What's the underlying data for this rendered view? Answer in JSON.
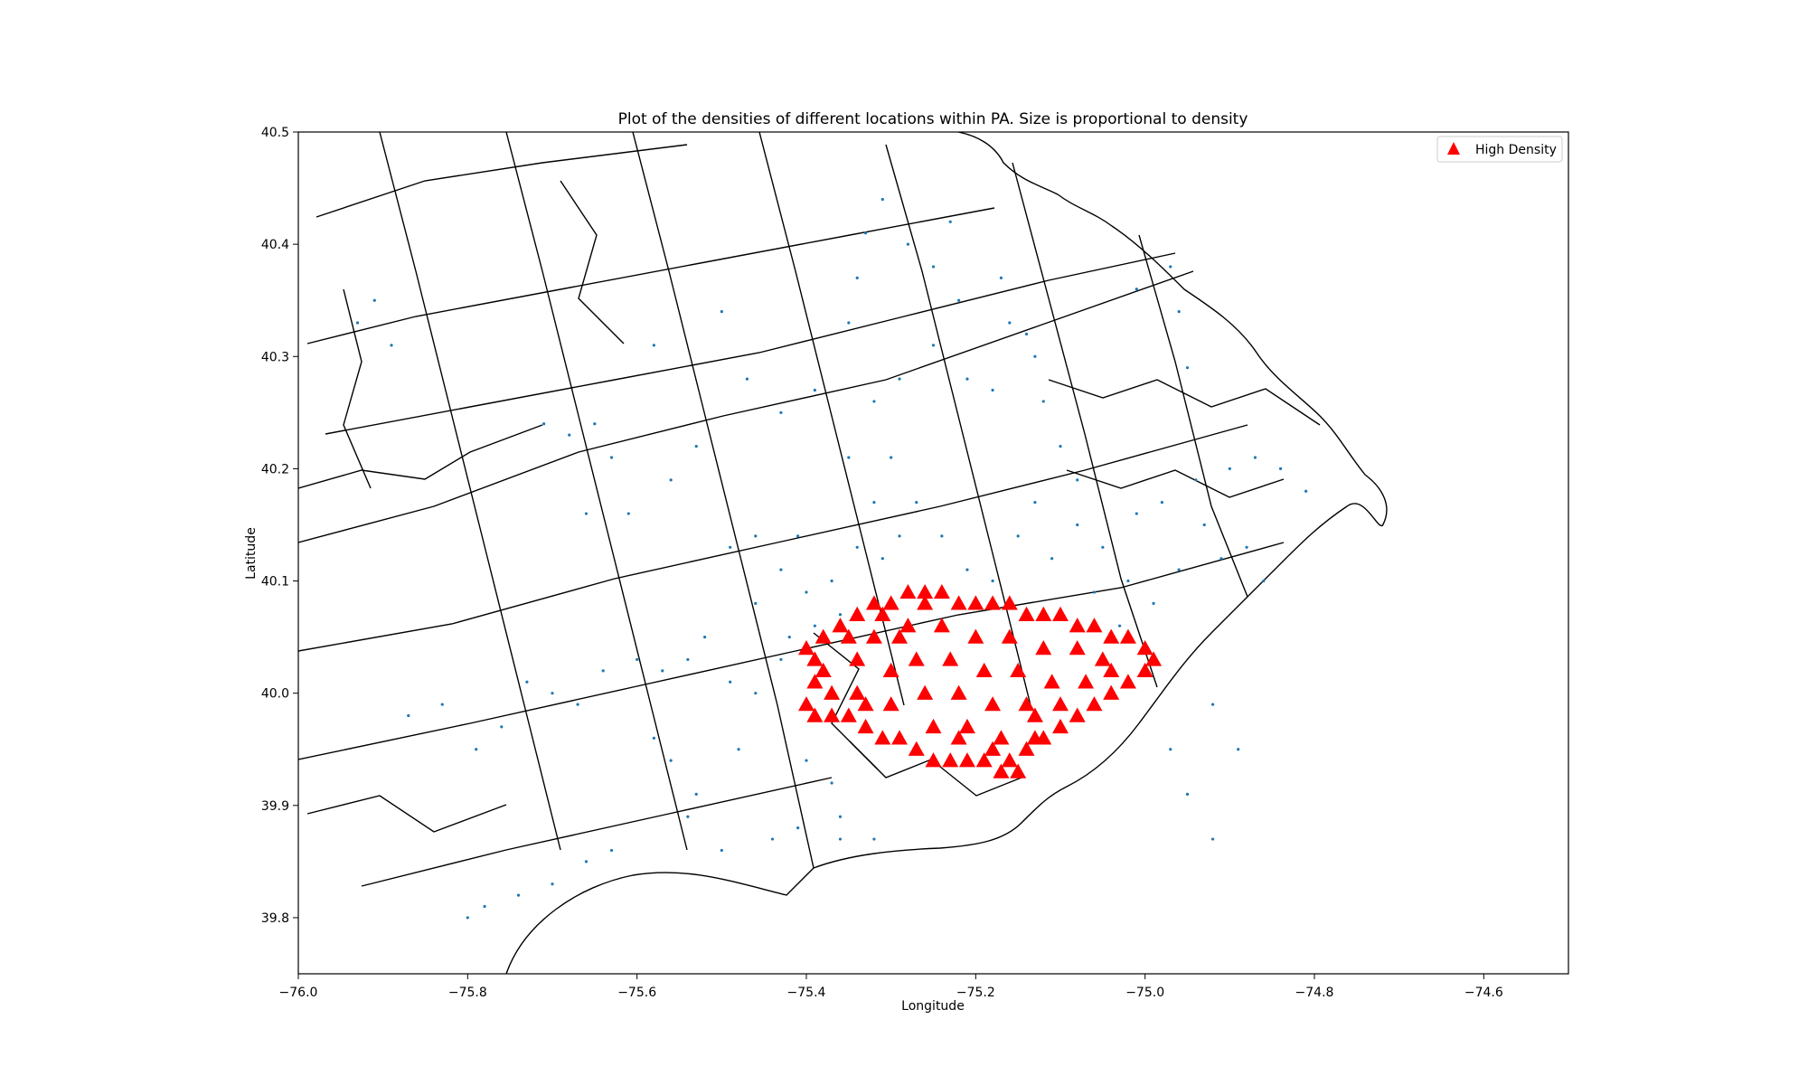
{
  "chart_data": {
    "type": "scatter",
    "title": "Plot of the densities of different locations within PA. Size is proportional to density",
    "xlabel": "Longitude",
    "ylabel": "Latitude",
    "xlim": [
      -76.0,
      -74.5
    ],
    "ylim": [
      39.75,
      40.5
    ],
    "xticks": [
      -76.0,
      -75.8,
      -75.6,
      -75.4,
      -75.2,
      -75.0,
      -74.8,
      -74.6
    ],
    "yticks": [
      39.8,
      39.9,
      40.0,
      40.1,
      40.2,
      40.3,
      40.4,
      40.5
    ],
    "xtick_labels": [
      "−76.0",
      "−75.8",
      "−75.6",
      "−75.4",
      "−75.2",
      "−75.0",
      "−74.8",
      "−74.6"
    ],
    "ytick_labels": [
      "39.8",
      "39.9",
      "40.0",
      "40.1",
      "40.2",
      "40.3",
      "40.4",
      "40.5"
    ],
    "legend": {
      "position": "upper-right",
      "entries": [
        "High Density"
      ]
    },
    "grid": false,
    "background_layer": "census tract boundaries (black outlines)",
    "series": [
      {
        "name": "",
        "marker": "point",
        "color": "#1f77b4",
        "points": [
          [
            -75.49,
            40.01
          ],
          [
            -75.46,
            40.0
          ],
          [
            -75.43,
            40.03
          ],
          [
            -75.6,
            40.03
          ],
          [
            -75.57,
            40.02
          ],
          [
            -75.54,
            40.03
          ],
          [
            -75.7,
            40.0
          ],
          [
            -75.67,
            39.99
          ],
          [
            -75.76,
            39.97
          ],
          [
            -75.79,
            39.95
          ],
          [
            -75.58,
            39.96
          ],
          [
            -75.56,
            39.94
          ],
          [
            -75.48,
            39.95
          ],
          [
            -75.66,
            40.16
          ],
          [
            -75.61,
            40.16
          ],
          [
            -75.71,
            40.24
          ],
          [
            -75.68,
            40.23
          ],
          [
            -75.65,
            40.24
          ],
          [
            -75.63,
            40.21
          ],
          [
            -75.56,
            40.19
          ],
          [
            -75.53,
            40.22
          ],
          [
            -75.49,
            40.13
          ],
          [
            -75.46,
            40.14
          ],
          [
            -75.43,
            40.11
          ],
          [
            -75.41,
            40.14
          ],
          [
            -75.4,
            40.09
          ],
          [
            -75.37,
            40.1
          ],
          [
            -75.34,
            40.13
          ],
          [
            -75.31,
            40.12
          ],
          [
            -75.29,
            40.14
          ],
          [
            -75.32,
            40.17
          ],
          [
            -75.35,
            40.21
          ],
          [
            -75.32,
            40.26
          ],
          [
            -75.29,
            40.28
          ],
          [
            -75.25,
            40.31
          ],
          [
            -75.21,
            40.28
          ],
          [
            -75.18,
            40.27
          ],
          [
            -75.14,
            40.32
          ],
          [
            -75.13,
            40.3
          ],
          [
            -75.12,
            40.26
          ],
          [
            -75.1,
            40.22
          ],
          [
            -75.08,
            40.19
          ],
          [
            -75.13,
            40.17
          ],
          [
            -75.15,
            40.14
          ],
          [
            -75.11,
            40.12
          ],
          [
            -75.08,
            40.15
          ],
          [
            -75.05,
            40.13
          ],
          [
            -75.01,
            40.16
          ],
          [
            -74.98,
            40.17
          ],
          [
            -74.94,
            40.19
          ],
          [
            -74.9,
            40.2
          ],
          [
            -74.87,
            40.21
          ],
          [
            -74.84,
            40.2
          ],
          [
            -74.81,
            40.18
          ],
          [
            -74.93,
            40.15
          ],
          [
            -74.96,
            40.11
          ],
          [
            -74.99,
            40.08
          ],
          [
            -75.02,
            40.1
          ],
          [
            -74.91,
            40.12
          ],
          [
            -74.88,
            40.13
          ],
          [
            -74.86,
            40.1
          ],
          [
            -75.03,
            40.06
          ],
          [
            -75.06,
            40.09
          ],
          [
            -75.18,
            40.1
          ],
          [
            -75.21,
            40.11
          ],
          [
            -75.24,
            40.14
          ],
          [
            -75.27,
            40.17
          ],
          [
            -75.3,
            40.21
          ],
          [
            -75.35,
            40.33
          ],
          [
            -75.34,
            40.37
          ],
          [
            -75.33,
            40.41
          ],
          [
            -75.31,
            40.44
          ],
          [
            -75.28,
            40.4
          ],
          [
            -75.25,
            40.38
          ],
          [
            -75.23,
            40.42
          ],
          [
            -75.22,
            40.35
          ],
          [
            -75.17,
            40.37
          ],
          [
            -75.16,
            40.33
          ],
          [
            -75.01,
            40.36
          ],
          [
            -74.97,
            40.38
          ],
          [
            -74.96,
            40.34
          ],
          [
            -74.95,
            40.29
          ],
          [
            -75.36,
            40.07
          ],
          [
            -75.39,
            40.06
          ],
          [
            -75.42,
            40.05
          ],
          [
            -75.4,
            39.94
          ],
          [
            -75.37,
            39.92
          ],
          [
            -75.36,
            39.89
          ],
          [
            -75.32,
            39.87
          ],
          [
            -75.36,
            39.87
          ],
          [
            -75.41,
            39.88
          ],
          [
            -75.44,
            39.87
          ],
          [
            -75.5,
            39.86
          ],
          [
            -75.53,
            39.91
          ],
          [
            -75.54,
            39.89
          ],
          [
            -75.63,
            39.86
          ],
          [
            -75.66,
            39.85
          ],
          [
            -75.7,
            39.83
          ],
          [
            -75.74,
            39.82
          ],
          [
            -75.78,
            39.81
          ],
          [
            -75.8,
            39.8
          ],
          [
            -75.91,
            40.35
          ],
          [
            -75.93,
            40.33
          ],
          [
            -75.89,
            40.31
          ],
          [
            -74.92,
            39.99
          ],
          [
            -74.89,
            39.95
          ],
          [
            -74.97,
            39.95
          ],
          [
            -74.95,
            39.91
          ],
          [
            -74.92,
            39.87
          ],
          [
            -75.46,
            40.08
          ],
          [
            -75.52,
            40.05
          ],
          [
            -75.64,
            40.02
          ],
          [
            -75.73,
            40.01
          ],
          [
            -75.83,
            39.99
          ],
          [
            -75.87,
            39.98
          ],
          [
            -75.5,
            40.34
          ],
          [
            -75.43,
            40.25
          ],
          [
            -75.39,
            40.27
          ],
          [
            -75.47,
            40.28
          ],
          [
            -75.58,
            40.31
          ]
        ]
      },
      {
        "name": "High Density",
        "marker": "triangle",
        "color": "#ff0000",
        "points": [
          [
            -75.4,
            40.04
          ],
          [
            -75.38,
            40.05
          ],
          [
            -75.36,
            40.06
          ],
          [
            -75.34,
            40.07
          ],
          [
            -75.32,
            40.08
          ],
          [
            -75.3,
            40.08
          ],
          [
            -75.28,
            40.09
          ],
          [
            -75.26,
            40.09
          ],
          [
            -75.24,
            40.09
          ],
          [
            -75.22,
            40.08
          ],
          [
            -75.2,
            40.08
          ],
          [
            -75.18,
            40.08
          ],
          [
            -75.16,
            40.08
          ],
          [
            -75.14,
            40.07
          ],
          [
            -75.12,
            40.07
          ],
          [
            -75.1,
            40.07
          ],
          [
            -75.08,
            40.06
          ],
          [
            -75.06,
            40.06
          ],
          [
            -75.04,
            40.05
          ],
          [
            -75.02,
            40.05
          ],
          [
            -75.0,
            40.04
          ],
          [
            -74.99,
            40.03
          ],
          [
            -75.0,
            40.02
          ],
          [
            -75.02,
            40.01
          ],
          [
            -75.04,
            40.0
          ],
          [
            -75.06,
            39.99
          ],
          [
            -75.08,
            39.98
          ],
          [
            -75.1,
            39.97
          ],
          [
            -75.12,
            39.96
          ],
          [
            -75.14,
            39.95
          ],
          [
            -75.15,
            39.93
          ],
          [
            -75.17,
            39.93
          ],
          [
            -75.19,
            39.94
          ],
          [
            -75.21,
            39.94
          ],
          [
            -75.23,
            39.94
          ],
          [
            -75.25,
            39.94
          ],
          [
            -75.27,
            39.95
          ],
          [
            -75.29,
            39.96
          ],
          [
            -75.31,
            39.96
          ],
          [
            -75.33,
            39.97
          ],
          [
            -75.35,
            39.98
          ],
          [
            -75.37,
            39.98
          ],
          [
            -75.39,
            39.98
          ],
          [
            -75.4,
            39.99
          ],
          [
            -75.39,
            40.01
          ],
          [
            -75.38,
            40.02
          ],
          [
            -75.39,
            40.03
          ],
          [
            -75.34,
            40.03
          ],
          [
            -75.34,
            40.0
          ],
          [
            -75.32,
            40.05
          ],
          [
            -75.3,
            40.02
          ],
          [
            -75.3,
            39.99
          ],
          [
            -75.28,
            40.06
          ],
          [
            -75.27,
            40.03
          ],
          [
            -75.26,
            40.0
          ],
          [
            -75.25,
            39.97
          ],
          [
            -75.24,
            40.06
          ],
          [
            -75.23,
            40.03
          ],
          [
            -75.22,
            40.0
          ],
          [
            -75.21,
            39.97
          ],
          [
            -75.2,
            40.05
          ],
          [
            -75.19,
            40.02
          ],
          [
            -75.18,
            39.99
          ],
          [
            -75.17,
            39.96
          ],
          [
            -75.16,
            40.05
          ],
          [
            -75.15,
            40.02
          ],
          [
            -75.14,
            39.99
          ],
          [
            -75.13,
            39.98
          ],
          [
            -75.12,
            40.04
          ],
          [
            -75.11,
            40.01
          ],
          [
            -75.1,
            39.99
          ],
          [
            -75.08,
            40.04
          ],
          [
            -75.07,
            40.01
          ],
          [
            -75.05,
            40.03
          ],
          [
            -75.04,
            40.02
          ],
          [
            -75.29,
            40.05
          ],
          [
            -75.31,
            40.07
          ],
          [
            -75.35,
            40.05
          ],
          [
            -75.37,
            40.0
          ],
          [
            -75.33,
            39.99
          ],
          [
            -75.22,
            39.96
          ],
          [
            -75.18,
            39.95
          ],
          [
            -75.16,
            39.94
          ],
          [
            -75.13,
            39.96
          ],
          [
            -75.26,
            40.08
          ]
        ]
      }
    ]
  }
}
